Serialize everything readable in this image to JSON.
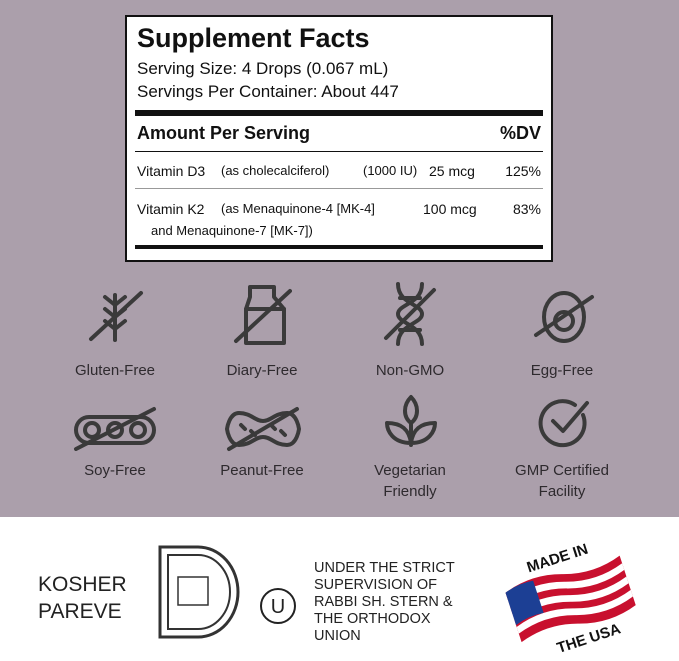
{
  "facts": {
    "title": "Supplement Facts",
    "serving_size": "Serving Size: 4 Drops (0.067 mL)",
    "servings_per_container": "Servings Per Container: About 447",
    "header": {
      "amount": "Amount Per Serving",
      "dv": "%DV"
    },
    "rows": [
      {
        "name": "Vitamin D3",
        "detail": [
          "(as cholecalciferol)",
          "(1000 IU)"
        ],
        "amount": "25 mcg",
        "dv": "125%"
      },
      {
        "name": "Vitamin K2",
        "detail": [
          "(as Menaquinone-4 [MK-4]",
          "and Menaquinone-7 [MK-7])"
        ],
        "amount": "100 mcg",
        "dv": "83%"
      }
    ]
  },
  "badges": [
    {
      "lines": [
        "Gluten-Free"
      ]
    },
    {
      "lines": [
        "Diary-Free"
      ]
    },
    {
      "lines": [
        "Non-GMO"
      ]
    },
    {
      "lines": [
        "Egg-Free"
      ]
    },
    {
      "lines": [
        "Soy-Free"
      ]
    },
    {
      "lines": [
        "Peanut-Free"
      ]
    },
    {
      "lines": [
        "Vegetarian",
        "Friendly"
      ]
    },
    {
      "lines": [
        "GMP Certified",
        "Facility"
      ]
    }
  ],
  "footer": {
    "kosher": [
      "KOSHER",
      "PAREVE"
    ],
    "ou_symbol": "U",
    "supervision": [
      "UNDER THE STRICT",
      "SUPERVISION OF",
      "RABBI SH. STERN &",
      "THE ORTHODOX",
      "UNION"
    ],
    "badge_top": "MADE IN",
    "badge_bottom": "THE USA"
  }
}
